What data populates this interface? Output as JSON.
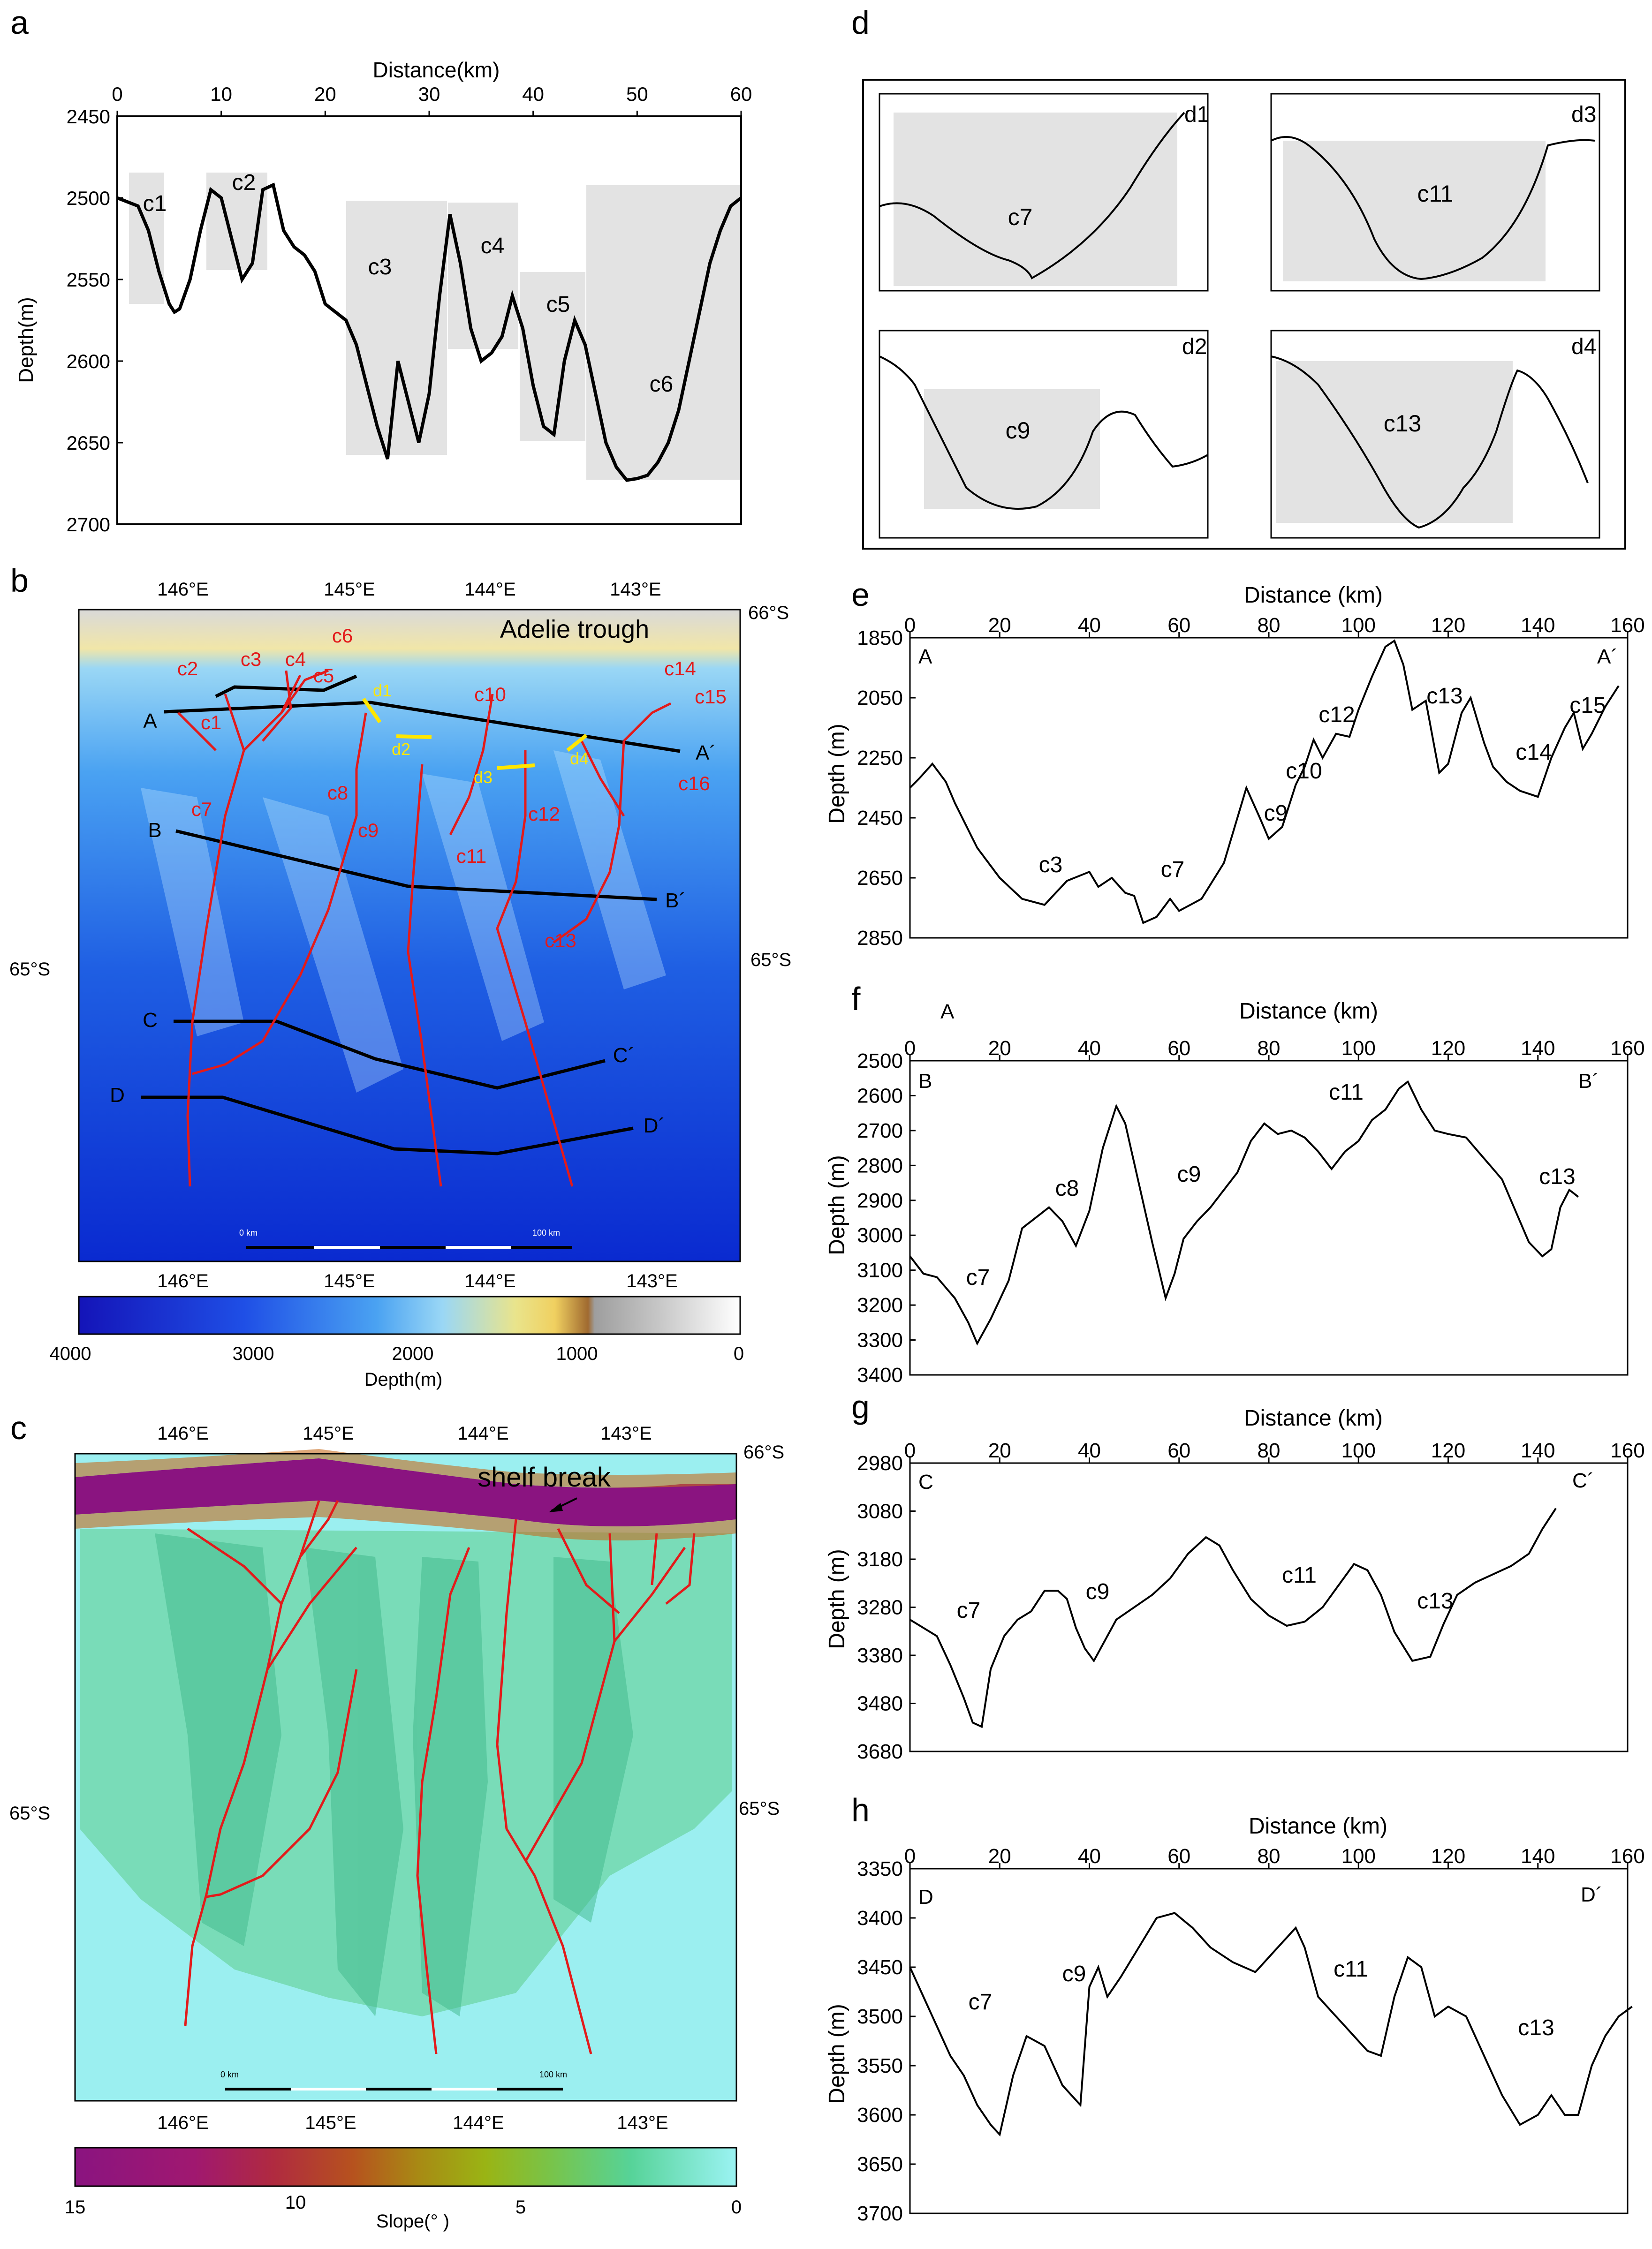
{
  "panels": {
    "a": "a",
    "b": "b",
    "c": "c",
    "d": "d",
    "e": "e",
    "f": "f",
    "g": "g",
    "h": "h"
  },
  "panel_a": {
    "xlabel": "Distance(km)",
    "ylabel": "Depth(m)",
    "xticks": [
      "0",
      "10",
      "20",
      "30",
      "40",
      "50",
      "60"
    ],
    "yticks": [
      "2450",
      "2500",
      "2550",
      "2600",
      "2650",
      "2700"
    ],
    "canyons": [
      "c1",
      "c2",
      "c3",
      "c4",
      "c5",
      "c6"
    ]
  },
  "panel_b": {
    "lon_ticks": [
      "146°E",
      "145°E",
      "144°E",
      "143°E"
    ],
    "lat_top": "66°S",
    "lat_mid_left": "65°S",
    "lat_mid_right": "65°S",
    "title": "Adelie trough",
    "canyons": [
      "c1",
      "c2",
      "c3",
      "c4",
      "c5",
      "c6",
      "c7",
      "c8",
      "c9",
      "c10",
      "c11",
      "c12",
      "c13",
      "c14",
      "c15",
      "c16"
    ],
    "section_labels": [
      "d1",
      "d2",
      "d3",
      "d4"
    ],
    "profile_labels": [
      "A",
      "A´",
      "B",
      "B´",
      "C",
      "C´",
      "D",
      "D´"
    ],
    "scale_start": "0 km",
    "scale_end": "100 km",
    "colorbar_ticks": [
      "4000",
      "3000",
      "2000",
      "1000",
      "0"
    ],
    "colorbar_label": "Depth(m)",
    "colors": {
      "deep": "#0a0fd1",
      "mid": "#3f8ff0",
      "shallow": "#9ad7f5",
      "shelf": "#e6e07a",
      "land": "#c9c9c9"
    }
  },
  "panel_c": {
    "lon_ticks": [
      "146°E",
      "145°E",
      "144°E",
      "143°E"
    ],
    "lat_top": "66°S",
    "lat_mid_left": "65°S",
    "lat_mid_right": "65°S",
    "annotation": "shelf break",
    "scale_start": "0 km",
    "scale_end": "100 km",
    "colorbar_ticks": [
      "15",
      "10",
      "5",
      "0"
    ],
    "colorbar_label": "Slope(° )"
  },
  "panel_d": {
    "boxes": [
      {
        "id": "d1",
        "canyon": "c7"
      },
      {
        "id": "d3",
        "canyon": "c11"
      },
      {
        "id": "d2",
        "canyon": "c9"
      },
      {
        "id": "d4",
        "canyon": "c13"
      }
    ]
  },
  "panel_e": {
    "xlabel": "Distance (km)",
    "ylabel": "Depth (m)",
    "xticks": [
      "0",
      "20",
      "40",
      "60",
      "80",
      "100",
      "120",
      "140",
      "160"
    ],
    "yticks": [
      "1850",
      "2050",
      "2250",
      "2450",
      "2650",
      "2850"
    ],
    "start": "A",
    "end": "A´",
    "canyons": [
      "c3",
      "c7",
      "c9",
      "c10",
      "c12",
      "c13",
      "c14",
      "c15"
    ]
  },
  "panel_f": {
    "xlabel": "Distance (km)",
    "ylabel": "Depth (m)",
    "xticks": [
      "0",
      "20",
      "40",
      "60",
      "80",
      "100",
      "120",
      "140",
      "160"
    ],
    "yticks": [
      "2500",
      "2600",
      "2700",
      "2800",
      "2900",
      "3000",
      "3100",
      "3200",
      "3300",
      "3400"
    ],
    "start": "B",
    "end": "B´",
    "extra": "A",
    "canyons": [
      "c7",
      "c8",
      "c9",
      "c11",
      "c13"
    ]
  },
  "panel_g": {
    "xlabel": "Distance (km)",
    "ylabel": "Depth (m)",
    "xticks": [
      "0",
      "20",
      "40",
      "60",
      "80",
      "100",
      "120",
      "140",
      "160"
    ],
    "yticks": [
      "2980",
      "3080",
      "3180",
      "3280",
      "3380",
      "3480",
      "3680"
    ],
    "start": "C",
    "end": "C´",
    "canyons": [
      "c7",
      "c9",
      "c11",
      "c13"
    ]
  },
  "panel_h": {
    "xlabel": "Distance (km)",
    "ylabel": "Depth (m)",
    "xticks": [
      "0",
      "20",
      "40",
      "60",
      "80",
      "100",
      "120",
      "140",
      "160"
    ],
    "yticks": [
      "3350",
      "3400",
      "3450",
      "3500",
      "3550",
      "3600",
      "3650",
      "3700"
    ],
    "start": "D",
    "end": "D´",
    "canyons": [
      "c7",
      "c9",
      "c11",
      "c13"
    ]
  },
  "chart_data": [
    {
      "type": "line",
      "id": "a",
      "title": "",
      "xlabel": "Distance(km)",
      "ylabel": "Depth(m)",
      "xlim": [
        0,
        60
      ],
      "ylim": [
        2450,
        2700
      ],
      "y_inverted": true,
      "x": [
        0,
        2,
        3,
        4,
        5,
        5.5,
        6,
        7,
        8,
        9,
        10,
        11,
        12,
        13,
        14,
        15,
        16,
        17,
        18,
        19,
        20,
        21,
        22,
        23,
        24,
        25,
        26,
        26.5,
        27,
        28,
        29,
        30,
        31,
        32,
        33,
        34,
        35,
        36,
        37,
        38,
        39,
        40,
        41,
        42,
        43,
        44,
        45,
        46,
        47,
        48,
        49,
        50,
        51,
        52,
        53,
        54,
        55,
        56,
        57,
        58,
        59,
        60
      ],
      "y": [
        2500,
        2505,
        2520,
        2545,
        2565,
        2570,
        2568,
        2550,
        2520,
        2495,
        2500,
        2525,
        2550,
        2540,
        2495,
        2492,
        2520,
        2530,
        2535,
        2545,
        2565,
        2570,
        2575,
        2590,
        2615,
        2640,
        2660,
        2630,
        2600,
        2625,
        2650,
        2620,
        2560,
        2510,
        2540,
        2580,
        2600,
        2595,
        2585,
        2560,
        2580,
        2615,
        2640,
        2645,
        2600,
        2575,
        2590,
        2620,
        2650,
        2665,
        2673,
        2672,
        2670,
        2662,
        2650,
        2630,
        2600,
        2570,
        2540,
        2520,
        2505,
        2500
      ]
    },
    {
      "type": "line",
      "id": "e",
      "xlabel": "Distance (km)",
      "ylabel": "Depth (m)",
      "xlim": [
        0,
        160
      ],
      "ylim": [
        1850,
        2850
      ],
      "y_inverted": true,
      "x": [
        0,
        2,
        5,
        8,
        10,
        15,
        20,
        25,
        30,
        35,
        40,
        42,
        45,
        48,
        50,
        52,
        55,
        58,
        60,
        65,
        70,
        75,
        78,
        80,
        83,
        86,
        88,
        90,
        92,
        95,
        98,
        100,
        103,
        106,
        108,
        110,
        112,
        115,
        118,
        120,
        123,
        125,
        128,
        130,
        133,
        136,
        140,
        143,
        146,
        148,
        150,
        152,
        155,
        158
      ],
      "y": [
        2350,
        2320,
        2270,
        2330,
        2400,
        2550,
        2650,
        2720,
        2740,
        2660,
        2630,
        2680,
        2650,
        2700,
        2710,
        2800,
        2780,
        2720,
        2760,
        2720,
        2600,
        2350,
        2450,
        2520,
        2480,
        2340,
        2280,
        2190,
        2250,
        2170,
        2180,
        2090,
        1980,
        1880,
        1860,
        1940,
        2090,
        2060,
        2300,
        2270,
        2100,
        2050,
        2200,
        2280,
        2330,
        2360,
        2380,
        2250,
        2150,
        2100,
        2220,
        2170,
        2080,
        2010
      ]
    },
    {
      "type": "line",
      "id": "f",
      "xlabel": "Distance (km)",
      "ylabel": "Depth (m)",
      "xlim": [
        0,
        160
      ],
      "ylim": [
        2500,
        3400
      ],
      "y_inverted": true,
      "x": [
        0,
        3,
        6,
        10,
        13,
        15,
        18,
        22,
        25,
        28,
        31,
        34,
        37,
        40,
        43,
        46,
        48,
        51,
        54,
        57,
        59,
        61,
        64,
        67,
        70,
        73,
        76,
        79,
        82,
        85,
        88,
        91,
        94,
        97,
        100,
        103,
        106,
        109,
        111,
        114,
        117,
        120,
        124,
        128,
        132,
        135,
        138,
        141,
        143,
        145,
        147,
        149
      ],
      "y": [
        3060,
        3110,
        3120,
        3180,
        3250,
        3310,
        3240,
        3130,
        2980,
        2950,
        2920,
        2960,
        3030,
        2930,
        2750,
        2630,
        2680,
        2850,
        3020,
        3180,
        3110,
        3010,
        2960,
        2920,
        2870,
        2820,
        2730,
        2680,
        2710,
        2700,
        2720,
        2760,
        2810,
        2760,
        2730,
        2670,
        2640,
        2580,
        2560,
        2640,
        2700,
        2710,
        2720,
        2780,
        2840,
        2930,
        3020,
        3060,
        3040,
        2920,
        2870,
        2890
      ]
    },
    {
      "type": "line",
      "id": "g",
      "xlabel": "Distance (km)",
      "ylabel": "Depth (m)",
      "xlim": [
        0,
        160
      ],
      "ylim": [
        2980,
        3680
      ],
      "y_inverted": true,
      "x": [
        0,
        3,
        6,
        9,
        12,
        14,
        16,
        18,
        21,
        24,
        27,
        30,
        33,
        35,
        37,
        39,
        41,
        43,
        46,
        50,
        54,
        58,
        62,
        66,
        69,
        72,
        76,
        80,
        84,
        88,
        92,
        96,
        99,
        102,
        105,
        108,
        112,
        116,
        119,
        122,
        126,
        130,
        134,
        138,
        141,
        144
      ],
      "y": [
        3360,
        3380,
        3400,
        3470,
        3550,
        3610,
        3620,
        3480,
        3400,
        3360,
        3340,
        3290,
        3290,
        3310,
        3380,
        3430,
        3460,
        3420,
        3360,
        3330,
        3300,
        3260,
        3200,
        3160,
        3180,
        3240,
        3310,
        3350,
        3375,
        3365,
        3330,
        3270,
        3225,
        3240,
        3300,
        3390,
        3460,
        3450,
        3370,
        3300,
        3270,
        3250,
        3230,
        3200,
        3140,
        3090
      ]
    },
    {
      "type": "line",
      "id": "h",
      "xlabel": "Distance (km)",
      "ylabel": "Depth (m)",
      "xlim": [
        0,
        160
      ],
      "ylim": [
        3350,
        3700
      ],
      "y_inverted": true,
      "x": [
        0,
        3,
        6,
        9,
        12,
        15,
        18,
        20,
        23,
        26,
        30,
        34,
        38,
        40,
        42,
        44,
        47,
        51,
        55,
        59,
        63,
        67,
        72,
        77,
        82,
        86,
        88,
        91,
        95,
        99,
        102,
        105,
        108,
        111,
        114,
        117,
        120,
        124,
        128,
        132,
        136,
        140,
        143,
        146,
        149,
        152,
        155,
        158,
        161
      ],
      "y": [
        3450,
        3480,
        3510,
        3540,
        3560,
        3590,
        3610,
        3620,
        3560,
        3520,
        3530,
        3570,
        3590,
        3470,
        3450,
        3480,
        3460,
        3430,
        3400,
        3395,
        3410,
        3430,
        3445,
        3455,
        3430,
        3410,
        3430,
        3480,
        3500,
        3520,
        3535,
        3540,
        3480,
        3440,
        3450,
        3500,
        3490,
        3500,
        3540,
        3580,
        3610,
        3600,
        3580,
        3600,
        3600,
        3550,
        3520,
        3500,
        3490
      ]
    }
  ]
}
